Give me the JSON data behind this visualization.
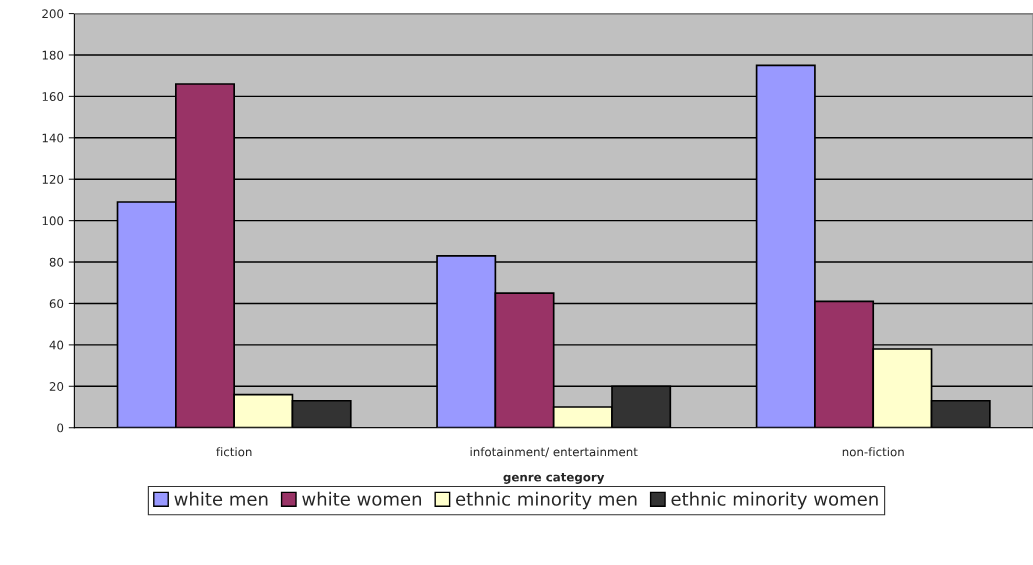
{
  "chart_data": {
    "type": "bar",
    "xlabel": "genre category",
    "categories": [
      "fiction",
      "infotainment/ entertainment",
      "non-fiction"
    ],
    "series": [
      {
        "name": "white men",
        "color": "#9999ff",
        "values": [
          109,
          83,
          175
        ]
      },
      {
        "name": "white women",
        "color": "#993366",
        "values": [
          166,
          65,
          61
        ]
      },
      {
        "name": "ethnic minority men",
        "color": "#ffffcc",
        "values": [
          16,
          10,
          38
        ]
      },
      {
        "name": "ethnic minority women",
        "color": "#333333",
        "values": [
          13,
          20,
          13
        ]
      }
    ],
    "ylim": [
      0,
      200
    ],
    "yticks": [
      0,
      20,
      40,
      60,
      80,
      100,
      120,
      140,
      160,
      180,
      200
    ],
    "grid": "y",
    "legend": "bottom"
  }
}
